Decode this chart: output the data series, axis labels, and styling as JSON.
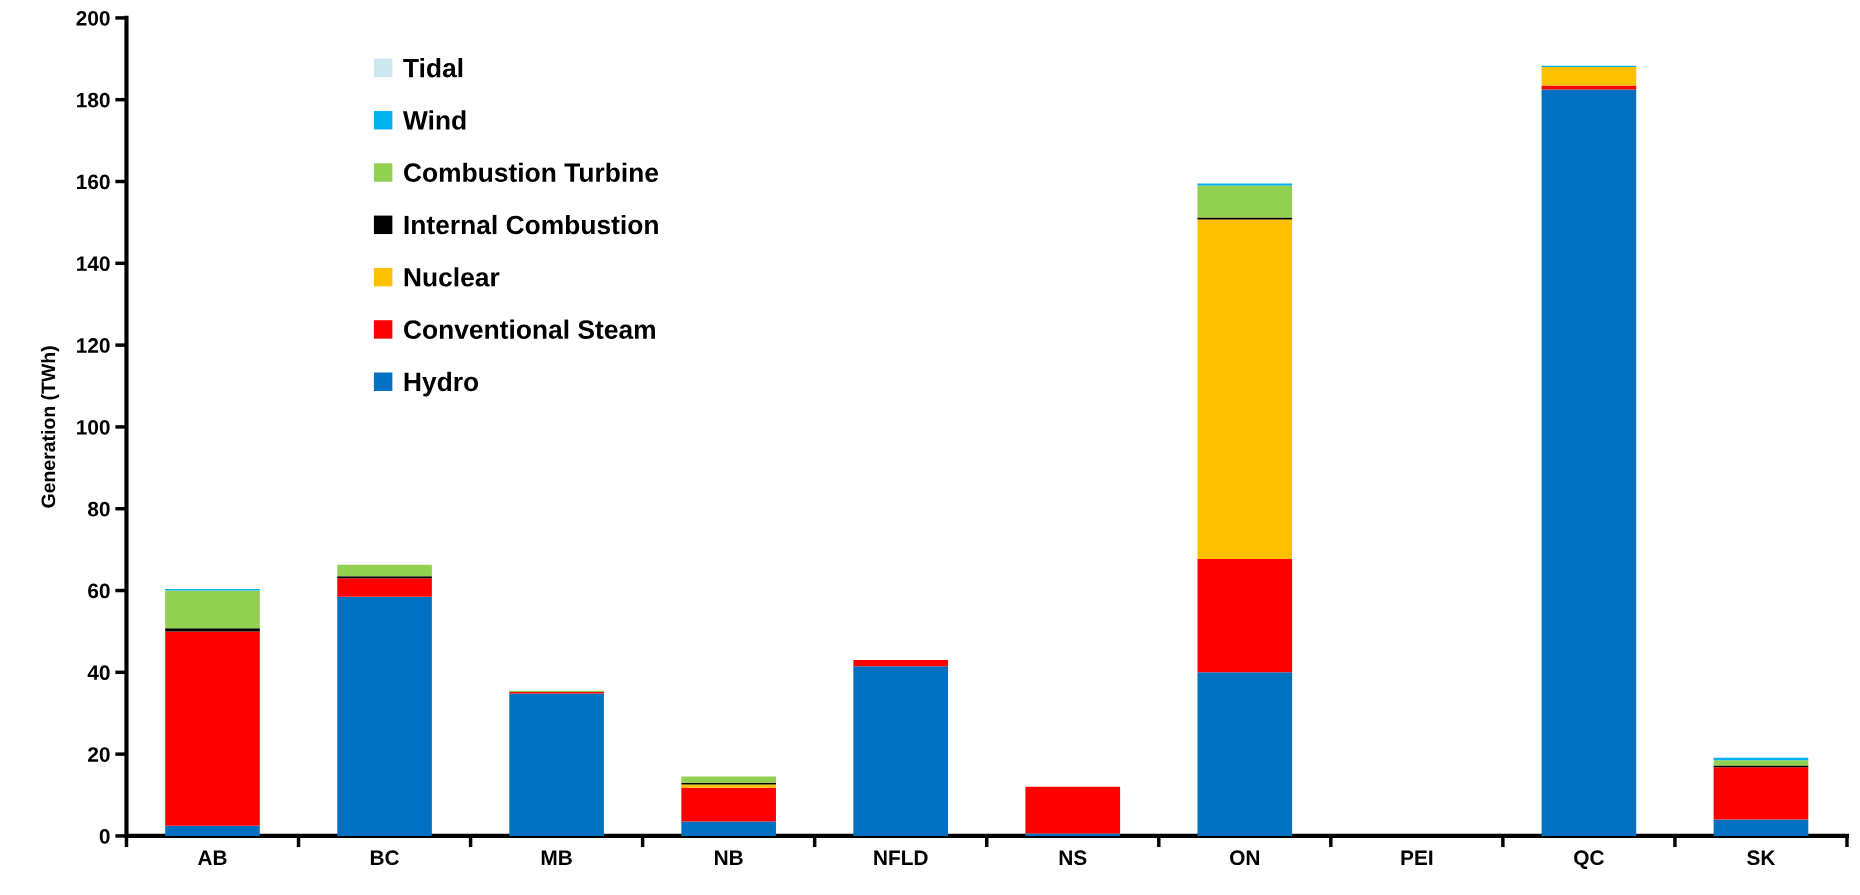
{
  "chart_data": {
    "type": "bar",
    "stacked": true,
    "ylabel": "Generation (TWh)",
    "categories": [
      "AB",
      "BC",
      "MB",
      "NB",
      "NFLD",
      "NS",
      "ON",
      "PEI",
      "QC",
      "SK"
    ],
    "series": [
      {
        "name": "Hydro",
        "color": "#0070c0",
        "values": [
          2.5,
          58.5,
          34.8,
          3.5,
          41.5,
          0.6,
          40,
          0,
          182.5,
          4
        ]
      },
      {
        "name": "Conventional Steam",
        "color": "#ff0000",
        "values": [
          47.5,
          4.5,
          0.4,
          8.3,
          1.5,
          11.4,
          27.7,
          0,
          1,
          12.8
        ]
      },
      {
        "name": "Nuclear",
        "color": "#ffc000",
        "values": [
          0,
          0,
          0,
          0.8,
          0,
          0,
          83,
          0,
          4.5,
          0
        ]
      },
      {
        "name": "Internal Combustion",
        "color": "#000000",
        "values": [
          0.8,
          0.5,
          0,
          0.4,
          0,
          0,
          0.5,
          0,
          0,
          0.4
        ]
      },
      {
        "name": "Combustion Turbine",
        "color": "#92d050",
        "values": [
          9.2,
          2.8,
          0.3,
          1.5,
          0,
          0,
          7.8,
          0,
          0,
          1.3
        ]
      },
      {
        "name": "Wind",
        "color": "#00b0f0",
        "values": [
          0.4,
          0,
          0,
          0,
          0,
          0,
          0.5,
          0,
          0.3,
          0.6
        ]
      },
      {
        "name": "Tidal",
        "color": "#cce8ee",
        "values": [
          0,
          0,
          0,
          0,
          0,
          0,
          0,
          0,
          0,
          0
        ]
      }
    ],
    "ylim": [
      0,
      200
    ],
    "yticks": [
      0,
      20,
      40,
      60,
      80,
      100,
      120,
      140,
      160,
      180,
      200
    ],
    "grid": false,
    "legend": "top left"
  }
}
